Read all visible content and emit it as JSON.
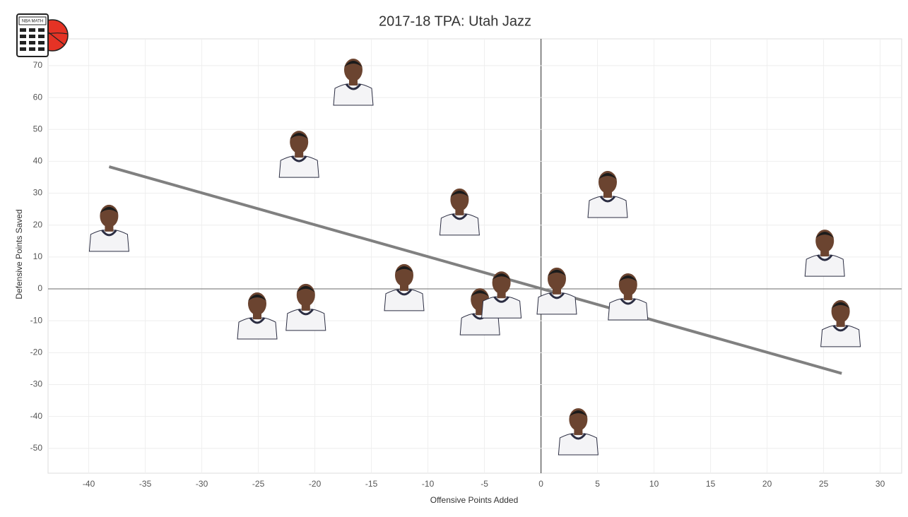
{
  "chart_data": {
    "type": "scatter",
    "title": "2017-18 TPA: Utah Jazz",
    "logo": "NBA MATH",
    "x_label": "Offensive Points Added",
    "y_label": "Defensive Points Saved",
    "x": [
      -38.2,
      -16.6,
      -21.4,
      -7.2,
      5.9,
      25.1,
      26.5,
      -25.1,
      -20.8,
      -12.1,
      -5.4,
      -3.5,
      1.4,
      7.7,
      3.3
    ],
    "values": [
      19.3,
      65.1,
      42.5,
      24.4,
      29.9,
      11.5,
      -10.6,
      -8.2,
      -5.5,
      0.7,
      -6.9,
      -1.6,
      -0.4,
      -2.2,
      -44.5
    ],
    "color": "#2b2d42",
    "trend_line": {
      "x": [
        -38.2,
        26.6
      ],
      "y": [
        38.3,
        -26.5
      ],
      "color": "#808080"
    },
    "xlim": [
      -43.6,
      31.9
    ],
    "ylim": [
      -57.8,
      78.4
    ],
    "xticks": [
      -40,
      -35,
      -30,
      -25,
      -20,
      -15,
      -10,
      -5,
      0,
      5,
      10,
      15,
      20,
      25,
      30
    ],
    "yticks": [
      -50,
      -40,
      -30,
      -20,
      -10,
      0,
      10,
      20,
      30,
      40,
      50,
      60,
      70
    ],
    "grid": true
  }
}
